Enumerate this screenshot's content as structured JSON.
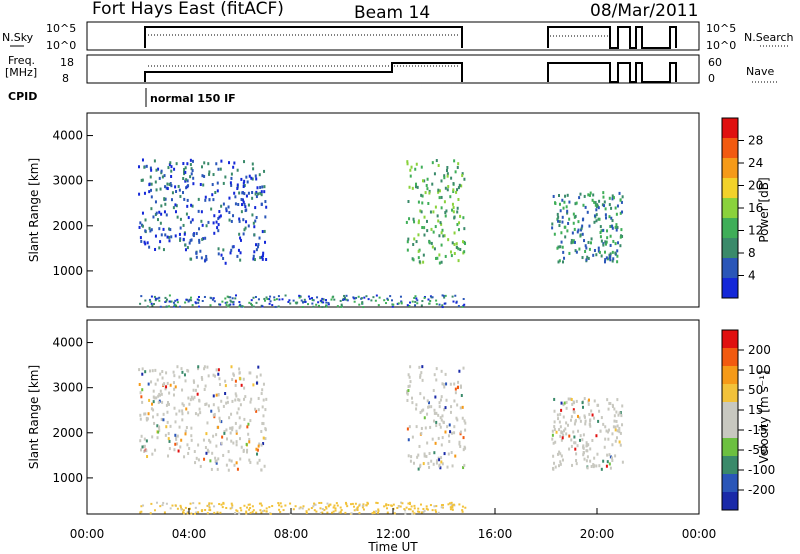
{
  "header": {
    "title": "Fort Hays East (fitACF)",
    "beam": "Beam 14",
    "date": "08/Mar/2011"
  },
  "status_panels": {
    "nsky_label": "N.Sky",
    "nsky_ticks": [
      "10^5",
      "10^0"
    ],
    "nsearch_label": "N.Search",
    "nsearch_ticks": [
      "10^5",
      "10^0"
    ],
    "freq_label_1": "Freq.",
    "freq_label_2": "[MHz]",
    "freq_ticks": [
      "18",
      "8"
    ],
    "nave_label": "Nave",
    "nave_ticks": [
      "60",
      "0"
    ],
    "cpid_label": "CPID",
    "cpid_value": "normal 150 IF"
  },
  "colors": {
    "power": [
      "#1428d8",
      "#2a56b8",
      "#3a8a6a",
      "#3fae58",
      "#8ad23c",
      "#f2d22a",
      "#f59a18",
      "#f25a10",
      "#e01010"
    ],
    "velocity": [
      "#e01010",
      "#f25a10",
      "#f59a18",
      "#f2c23a",
      "#c8c8c0",
      "#c8c8c0",
      "#6cc040",
      "#3a8a6a",
      "#2a56b8",
      "#1a2aa8"
    ]
  },
  "chart_data": [
    {
      "type": "heatmap",
      "name": "power",
      "ylabel": "Slant Range [km]",
      "yticks": [
        "4000",
        "3000",
        "2000",
        "1000"
      ],
      "ylim": [
        200,
        4500
      ],
      "xlim": [
        0,
        24
      ],
      "colorbar_label": "Power [dB]",
      "colorbar_ticks": [
        "28",
        "24",
        "20",
        "16",
        "12",
        "8",
        "4"
      ],
      "colorbar_range": [
        0,
        32
      ],
      "regions": [
        {
          "t": [
            2.0,
            4.0
          ],
          "r": [
            1500,
            3500
          ],
          "v": 6
        },
        {
          "t": [
            4.0,
            7.0
          ],
          "r": [
            1200,
            3500
          ],
          "v": 6
        },
        {
          "t": [
            12.5,
            14.8
          ],
          "r": [
            1200,
            3500
          ],
          "v": 14
        },
        {
          "t": [
            18.2,
            21.0
          ],
          "r": [
            1200,
            2800
          ],
          "v": 10
        }
      ]
    },
    {
      "type": "heatmap",
      "name": "velocity",
      "ylabel": "Slant Range [km]",
      "yticks": [
        "4000",
        "3000",
        "2000",
        "1000"
      ],
      "ylim": [
        200,
        4500
      ],
      "xlim": [
        0,
        24
      ],
      "xticks": [
        "00:00",
        "04:00",
        "08:00",
        "12:00",
        "16:00",
        "20:00",
        "00:00"
      ],
      "xlabel": "Time UT",
      "colorbar_label": "Velocity [m s⁻¹]",
      "colorbar_ticks": [
        "200",
        "100",
        "50",
        "15",
        "-15",
        "-50",
        "-100",
        "-200"
      ],
      "colorbar_range": [
        -250,
        250
      ]
    }
  ]
}
